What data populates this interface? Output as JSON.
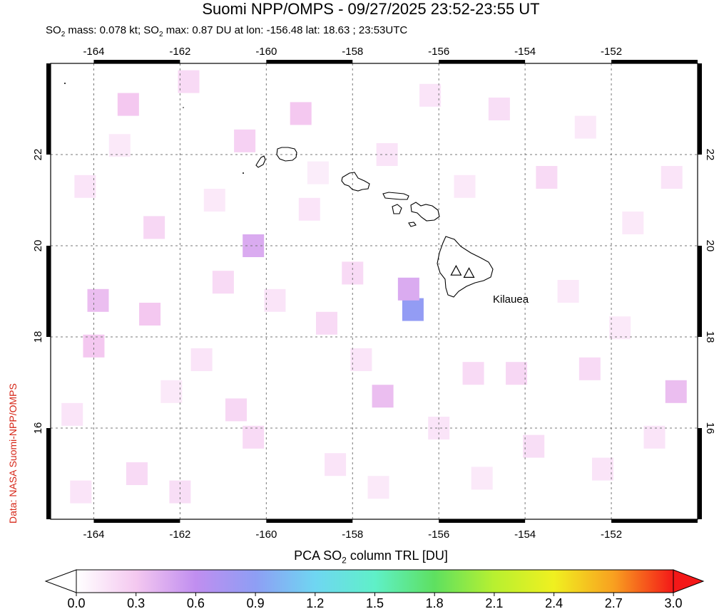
{
  "title": "Suomi NPP/OMPS - 09/27/2025 23:52-23:55 UT",
  "subtitle": {
    "part1": "SO",
    "sub1": "2",
    "part2": " mass: 0.078 kt; SO",
    "sub2": "2",
    "part3": " max: 0.87 DU at lon: -156.48 lat: 18.63 ; 23:53UTC"
  },
  "credit": "Data: NASA Suomi-NPP/OMPS",
  "map": {
    "lon_range": [
      -165.0,
      -150.0
    ],
    "lat_range": [
      14.0,
      24.0
    ],
    "lon_ticks": [
      -164,
      -162,
      -160,
      -158,
      -156,
      -154,
      -152
    ],
    "lat_ticks": [
      16,
      18,
      20,
      22
    ],
    "lon_tick_labels": [
      "-164",
      "-162",
      "-160",
      "-158",
      "-156",
      "-154",
      "-152"
    ],
    "lat_tick_labels": [
      "16",
      "18",
      "20",
      "22"
    ],
    "grid": true,
    "volcano_label": "Kilauea",
    "volcanoes": [
      {
        "lon": -155.6,
        "lat": 19.45
      },
      {
        "lon": -155.3,
        "lat": 19.4
      }
    ],
    "so2_pixels": [
      {
        "lon": -156.6,
        "lat": 18.6,
        "du": 0.87
      },
      {
        "lon": -156.7,
        "lat": 19.05,
        "du": 0.45
      },
      {
        "lon": -160.3,
        "lat": 20.0,
        "du": 0.45
      },
      {
        "lon": -163.9,
        "lat": 18.8,
        "du": 0.35
      },
      {
        "lon": -164.0,
        "lat": 17.8,
        "du": 0.3
      },
      {
        "lon": -157.3,
        "lat": 16.7,
        "du": 0.35
      },
      {
        "lon": -150.5,
        "lat": 16.8,
        "du": 0.35
      },
      {
        "lon": -163.2,
        "lat": 23.1,
        "du": 0.3
      },
      {
        "lon": -159.2,
        "lat": 22.9,
        "du": 0.3
      },
      {
        "lon": -160.5,
        "lat": 22.3,
        "du": 0.25
      },
      {
        "lon": -162.7,
        "lat": 18.5,
        "du": 0.3
      },
      {
        "lon": -161.0,
        "lat": 19.2,
        "du": 0.2
      },
      {
        "lon": -158.0,
        "lat": 19.4,
        "du": 0.2
      },
      {
        "lon": -154.2,
        "lat": 17.2,
        "du": 0.22
      },
      {
        "lon": -152.5,
        "lat": 17.3,
        "du": 0.2
      },
      {
        "lon": -155.2,
        "lat": 17.2,
        "du": 0.2
      },
      {
        "lon": -158.6,
        "lat": 18.3,
        "du": 0.2
      },
      {
        "lon": -160.7,
        "lat": 16.4,
        "du": 0.22
      },
      {
        "lon": -163.0,
        "lat": 15.0,
        "du": 0.2
      },
      {
        "lon": -162.0,
        "lat": 14.6,
        "du": 0.18
      },
      {
        "lon": -160.3,
        "lat": 15.8,
        "du": 0.2
      },
      {
        "lon": -158.4,
        "lat": 15.2,
        "du": 0.15
      },
      {
        "lon": -153.8,
        "lat": 15.6,
        "du": 0.18
      },
      {
        "lon": -152.2,
        "lat": 15.1,
        "du": 0.15
      },
      {
        "lon": -151.0,
        "lat": 15.8,
        "du": 0.15
      },
      {
        "lon": -150.6,
        "lat": 21.5,
        "du": 0.15
      },
      {
        "lon": -153.5,
        "lat": 21.5,
        "du": 0.2
      },
      {
        "lon": -154.6,
        "lat": 23.0,
        "du": 0.18
      },
      {
        "lon": -156.2,
        "lat": 23.3,
        "du": 0.15
      },
      {
        "lon": -157.2,
        "lat": 22.0,
        "du": 0.15
      },
      {
        "lon": -161.8,
        "lat": 23.6,
        "du": 0.2
      },
      {
        "lon": -164.2,
        "lat": 21.3,
        "du": 0.15
      },
      {
        "lon": -162.6,
        "lat": 20.4,
        "du": 0.22
      },
      {
        "lon": -159.0,
        "lat": 20.8,
        "du": 0.15
      },
      {
        "lon": -157.8,
        "lat": 17.5,
        "du": 0.15
      },
      {
        "lon": -156.0,
        "lat": 16.0,
        "du": 0.15
      },
      {
        "lon": -153.0,
        "lat": 19.0,
        "du": 0.12
      },
      {
        "lon": -151.5,
        "lat": 20.5,
        "du": 0.12
      },
      {
        "lon": -164.5,
        "lat": 16.3,
        "du": 0.15
      },
      {
        "lon": -161.5,
        "lat": 17.5,
        "du": 0.15
      },
      {
        "lon": -163.4,
        "lat": 22.2,
        "du": 0.12
      },
      {
        "lon": -159.8,
        "lat": 18.8,
        "du": 0.15
      },
      {
        "lon": -155.4,
        "lat": 21.3,
        "du": 0.12
      },
      {
        "lon": -152.6,
        "lat": 22.6,
        "du": 0.12
      },
      {
        "lon": -151.8,
        "lat": 18.2,
        "du": 0.12
      },
      {
        "lon": -157.4,
        "lat": 14.7,
        "du": 0.12
      },
      {
        "lon": -155.0,
        "lat": 14.9,
        "du": 0.12
      },
      {
        "lon": -164.3,
        "lat": 14.6,
        "du": 0.15
      },
      {
        "lon": -162.2,
        "lat": 16.8,
        "du": 0.12
      },
      {
        "lon": -158.8,
        "lat": 21.6,
        "du": 0.1
      },
      {
        "lon": -161.2,
        "lat": 21.0,
        "du": 0.12
      }
    ]
  },
  "colorbar": {
    "title_part1": "PCA SO",
    "title_sub": "2",
    "title_part2": " column TRL [DU]",
    "ticks": [
      0.0,
      0.3,
      0.6,
      0.9,
      1.2,
      1.5,
      1.8,
      2.1,
      2.4,
      2.7,
      3.0
    ],
    "tick_labels": [
      "0.0",
      "0.3",
      "0.6",
      "0.9",
      "1.2",
      "1.5",
      "1.8",
      "2.1",
      "2.4",
      "2.7",
      "3.0"
    ],
    "range": [
      0.0,
      3.0
    ],
    "colors": [
      "#ffffff",
      "#f4c8f0",
      "#c08ef0",
      "#8e9ef4",
      "#6fd6f2",
      "#5ff0c8",
      "#5ee060",
      "#b8f030",
      "#f0f020",
      "#f8a020",
      "#f41818"
    ]
  }
}
